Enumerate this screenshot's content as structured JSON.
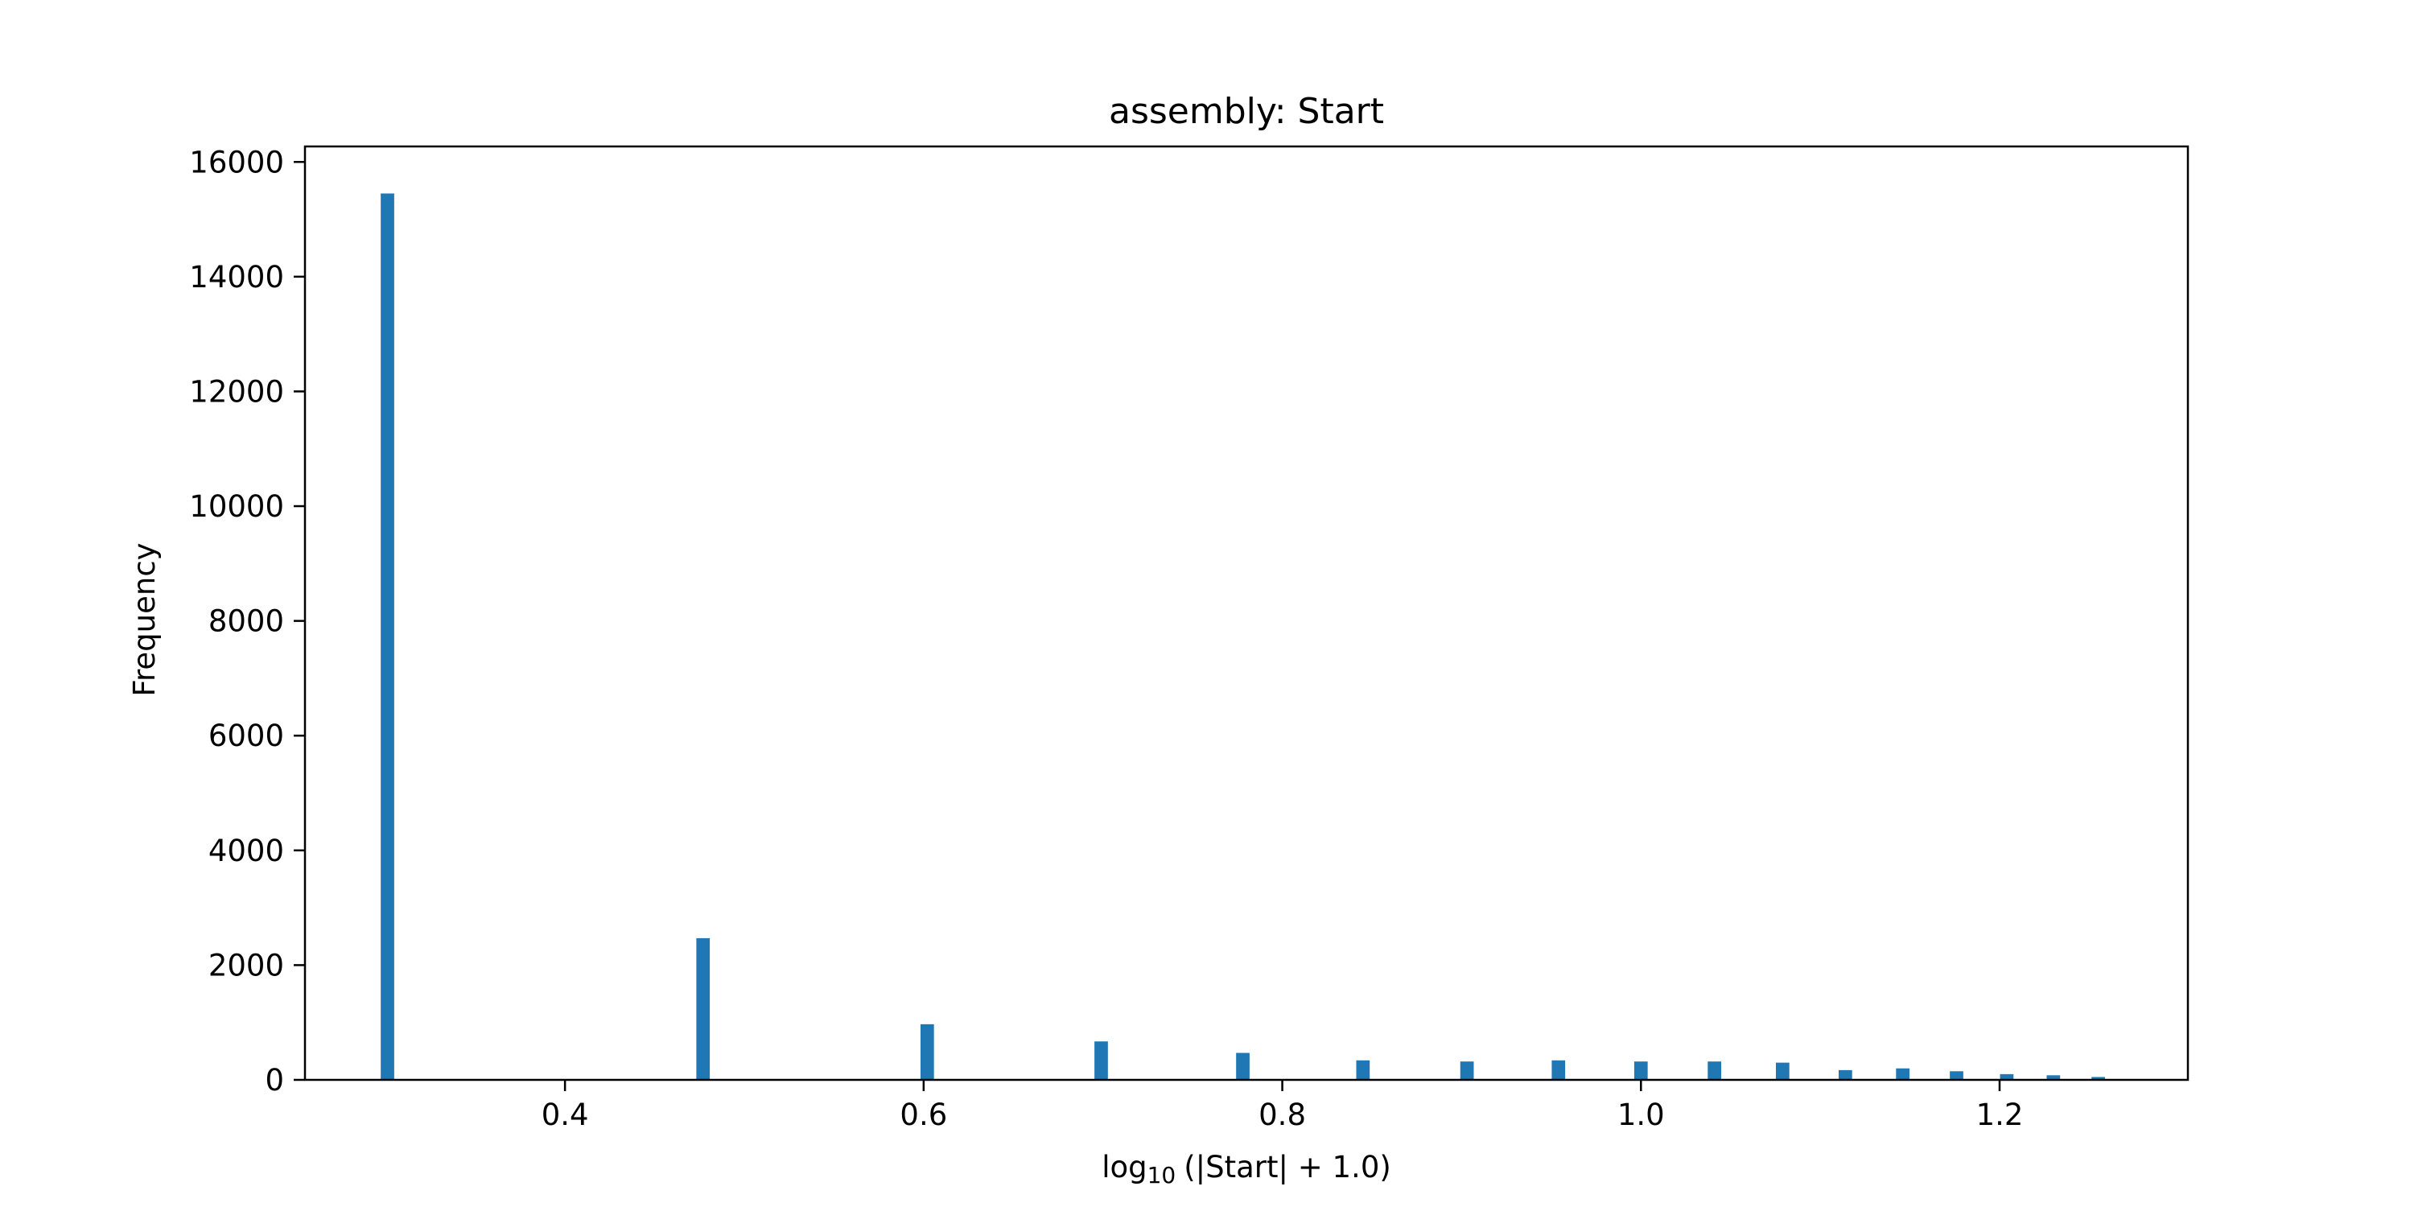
{
  "chart_data": {
    "type": "bar",
    "title": "assembly: Start",
    "xlabel": {
      "prefix": "log",
      "subscript": "10",
      "suffix": "(|Start| + 1.0)"
    },
    "ylabel": "Frequency",
    "xlim": [
      0.255,
      1.305
    ],
    "ylim": [
      0,
      16270
    ],
    "xticks": [
      0.4,
      0.6,
      0.8,
      1.0,
      1.2
    ],
    "xtick_labels": [
      "0.4",
      "0.6",
      "0.8",
      "1.0",
      "1.2"
    ],
    "yticks": [
      0,
      2000,
      4000,
      6000,
      8000,
      10000,
      12000,
      14000,
      16000
    ],
    "ytick_labels": [
      "0",
      "2000",
      "4000",
      "6000",
      "8000",
      "10000",
      "12000",
      "14000",
      "16000"
    ],
    "bin_width": 0.0075,
    "x": [
      0.301,
      0.477,
      0.602,
      0.699,
      0.778,
      0.845,
      0.903,
      0.954,
      1.0,
      1.041,
      1.079,
      1.114,
      1.146,
      1.176,
      1.204,
      1.23,
      1.255
    ],
    "values": [
      15450,
      2470,
      970,
      670,
      470,
      340,
      320,
      340,
      320,
      320,
      300,
      170,
      200,
      150,
      100,
      80,
      50
    ],
    "bar_color": "#1f77b4",
    "grid": false,
    "legend": "none"
  }
}
